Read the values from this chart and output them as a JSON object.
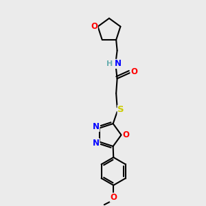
{
  "bg_color": "#ebebeb",
  "bond_color": "#000000",
  "bond_width": 1.5,
  "atom_colors": {
    "O": "#ff0000",
    "N": "#0000ff",
    "S": "#cccc00",
    "H": "#6aafb0",
    "C": "#000000"
  },
  "font_size": 8.5,
  "fig_size": [
    3.0,
    3.0
  ],
  "dpi": 100
}
